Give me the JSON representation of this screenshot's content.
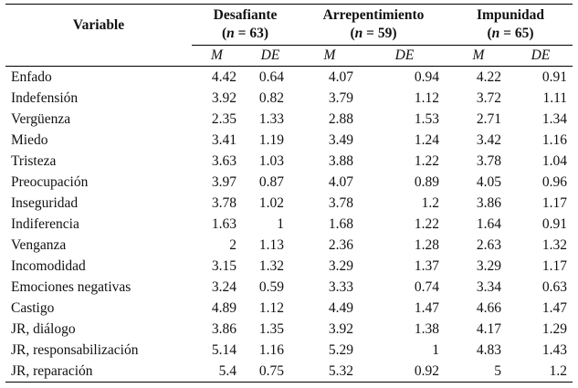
{
  "header": {
    "variable": "Variable",
    "groups": [
      {
        "name": "Desafiante",
        "n_prefix": "(",
        "n_label": "n",
        "n_eq": " = 63)"
      },
      {
        "name": "Arrepentimiento",
        "n_prefix": "(",
        "n_label": "n",
        "n_eq": " = 59)"
      },
      {
        "name": "Impunidad",
        "n_prefix": "(",
        "n_label": "n",
        "n_eq": " = 65)"
      }
    ],
    "sub": [
      "M",
      "DE",
      "M",
      "DE",
      "M",
      "DE"
    ]
  },
  "rows": [
    {
      "label": "Enfado",
      "v": [
        "4.42",
        "0.64",
        "4.07",
        "0.94",
        "4.22",
        "0.91"
      ]
    },
    {
      "label": "Indefensión",
      "v": [
        "3.92",
        "0.82",
        "3.79",
        "1.12",
        "3.72",
        "1.11"
      ]
    },
    {
      "label": "Vergüenza",
      "v": [
        "2.35",
        "1.33",
        "2.88",
        "1.53",
        "2.71",
        "1.34"
      ]
    },
    {
      "label": "Miedo",
      "v": [
        "3.41",
        "1.19",
        "3.49",
        "1.24",
        "3.42",
        "1.16"
      ]
    },
    {
      "label": "Tristeza",
      "v": [
        "3.63",
        "1.03",
        "3.88",
        "1.22",
        "3.78",
        "1.04"
      ]
    },
    {
      "label": "Preocupación",
      "v": [
        "3.97",
        "0.87",
        "4.07",
        "0.89",
        "4.05",
        "0.96"
      ]
    },
    {
      "label": "Inseguridad",
      "v": [
        "3.78",
        "1.02",
        "3.78",
        "1.2",
        "3.86",
        "1.17"
      ]
    },
    {
      "label": "Indiferencia",
      "v": [
        "1.63",
        "1",
        "1.68",
        "1.22",
        "1.64",
        "0.91"
      ]
    },
    {
      "label": "Venganza",
      "v": [
        "2",
        "1.13",
        "2.36",
        "1.28",
        "2.63",
        "1.32"
      ]
    },
    {
      "label": "Incomodidad",
      "v": [
        "3.15",
        "1.32",
        "3.29",
        "1.37",
        "3.29",
        "1.17"
      ]
    },
    {
      "label": "Emociones negativas",
      "v": [
        "3.24",
        "0.59",
        "3.33",
        "0.74",
        "3.34",
        "0.63"
      ]
    },
    {
      "label": "Castigo",
      "v": [
        "4.89",
        "1.12",
        "4.49",
        "1.47",
        "4.66",
        "1.47"
      ]
    },
    {
      "label": "JR, diálogo",
      "v": [
        "3.86",
        "1.35",
        "3.92",
        "1.38",
        "4.17",
        "1.29"
      ]
    },
    {
      "label": "JR, responsabilización",
      "v": [
        "5.14",
        "1.16",
        "5.29",
        "1",
        "4.83",
        "1.43"
      ]
    },
    {
      "label": "JR, reparación",
      "v": [
        "5.4",
        "0.75",
        "5.32",
        "0.92",
        "5",
        "1.2"
      ]
    }
  ]
}
